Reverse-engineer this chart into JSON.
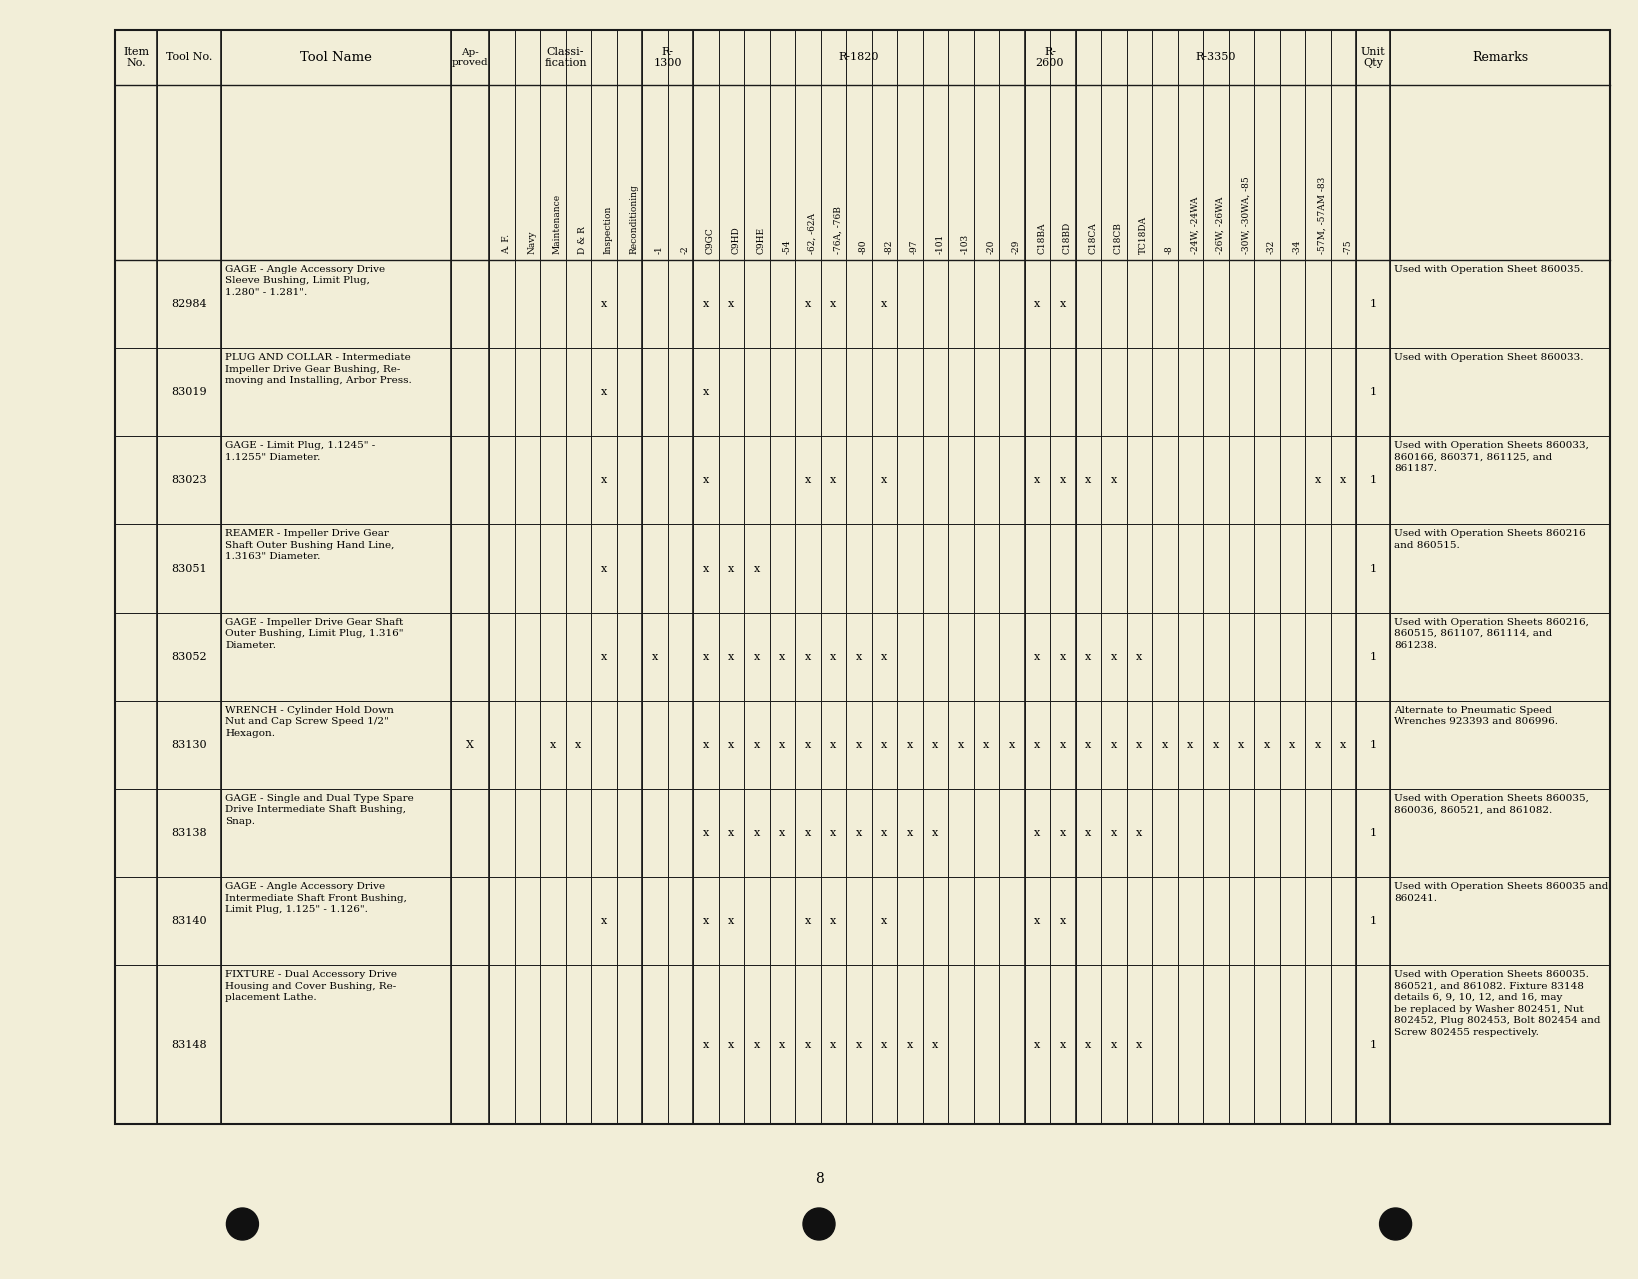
{
  "bg_color": "#f2eed8",
  "page_number": "8",
  "sub_col_labels": [
    "A. F.",
    "Navy",
    "Maintenance",
    "D & R",
    "Inspection",
    "Reconditioning",
    "-1",
    "-2",
    "C9GC",
    "C9HD",
    "C9HE",
    "-54",
    "-62, -62A",
    "-76A, -76B",
    "-80",
    "-82",
    "-97",
    "-101",
    "-103",
    "-20",
    "-29",
    "C18BA",
    "C18BD",
    "C18CA",
    "C18CB",
    "TC18DA",
    "-8",
    "-24W, -24WA",
    "-26W, -26WA",
    "-30W, -30WA, -85",
    "-32",
    "-34",
    "-57M, -57AM -83",
    "-75"
  ],
  "classi_labels": [
    "A. F.",
    "Navy",
    "Maintenance",
    "D & R",
    "Inspection",
    "Reconditioning"
  ],
  "r1300_labels": [
    "-1",
    "-2"
  ],
  "r1820_labels": [
    "C9GC",
    "C9HD",
    "C9HE",
    "-54",
    "-62, -62A",
    "-76A, -76B",
    "-80",
    "-82",
    "-97",
    "-101",
    "-103",
    "-20",
    "-29"
  ],
  "r2600_labels": [
    "C18BA",
    "C18BD"
  ],
  "r3350_labels": [
    "C18CA",
    "C18CB",
    "TC18DA",
    "-8",
    "-24W, -24WA",
    "-26W, -26WA",
    "-30W, -30WA, -85",
    "-32",
    "-34",
    "-57M, -57AM -83",
    "-75"
  ],
  "rows": [
    {
      "tool_no": "82984",
      "tool_name": "GAGE - Angle Accessory Drive\nSleeve Bushing, Limit Plug,\n1.280\" - 1.281\".",
      "approved": "",
      "marks": [
        "Inspection",
        "C9GC",
        "C9HD",
        "-62, -62A",
        "-76A, -76B",
        "-82",
        "C18BA",
        "C18BD"
      ],
      "unit_qty": "1",
      "remarks": "Used with Operation Sheet 860035."
    },
    {
      "tool_no": "83019",
      "tool_name": "PLUG AND COLLAR - Intermediate\nImpeller Drive Gear Bushing, Re-\nmoving and Installing, Arbor Press.",
      "approved": "",
      "marks": [
        "Inspection",
        "C9GC"
      ],
      "unit_qty": "1",
      "remarks": "Used with Operation Sheet 860033."
    },
    {
      "tool_no": "83023",
      "tool_name": "GAGE - Limit Plug, 1.1245\" -\n1.1255\" Diameter.",
      "approved": "",
      "marks": [
        "Inspection",
        "C9GC",
        "-62, -62A",
        "-76A, -76B",
        "-82",
        "C18BA",
        "C18BD",
        "C18CA",
        "C18CB",
        "-57M, -57AM -83",
        "-75"
      ],
      "unit_qty": "1",
      "remarks": "Used with Operation Sheets 860033,\n860166, 860371, 861125, and\n861187."
    },
    {
      "tool_no": "83051",
      "tool_name": "REAMER - Impeller Drive Gear\nShaft Outer Bushing Hand Line,\n1.3163\" Diameter.",
      "approved": "",
      "marks": [
        "Inspection",
        "C9GC",
        "C9HD",
        "C9HE"
      ],
      "unit_qty": "1",
      "remarks": "Used with Operation Sheets 860216\nand 860515."
    },
    {
      "tool_no": "83052",
      "tool_name": "GAGE - Impeller Drive Gear Shaft\nOuter Bushing, Limit Plug, 1.316\"\nDiameter.",
      "approved": "",
      "marks": [
        "Inspection",
        "-1",
        "C9GC",
        "C9HD",
        "C9HE",
        "-54",
        "-62, -62A",
        "-76A, -76B",
        "-80",
        "-82",
        "C18BA",
        "C18BD",
        "C18CA",
        "C18CB",
        "TC18DA"
      ],
      "unit_qty": "1",
      "remarks": "Used with Operation Sheets 860216,\n860515, 861107, 861114, and\n861238."
    },
    {
      "tool_no": "83130",
      "tool_name": "WRENCH - Cylinder Hold Down\nNut and Cap Screw Speed 1/2\"\nHexagon.",
      "approved": "X",
      "marks": [
        "Maintenance",
        "D & R",
        "C9GC",
        "C9HD",
        "C9HE",
        "-54",
        "-62, -62A",
        "-76A, -76B",
        "-80",
        "-82",
        "-97",
        "-101",
        "-103",
        "-20",
        "-29",
        "C18BA",
        "C18BD",
        "C18CA",
        "C18CB",
        "TC18DA",
        "-8",
        "-24W, -24WA",
        "-26W, -26WA",
        "-30W, -30WA, -85",
        "-32",
        "-34",
        "-57M, -57AM -83",
        "-75"
      ],
      "unit_qty": "1",
      "remarks": "Alternate to Pneumatic Speed\nWrenches 923393 and 806996."
    },
    {
      "tool_no": "83138",
      "tool_name": "GAGE - Single and Dual Type Spare\nDrive Intermediate Shaft Bushing,\nSnap.",
      "approved": "",
      "marks": [
        "C9GC",
        "C9HD",
        "C9HE",
        "-54",
        "-62, -62A",
        "-76A, -76B",
        "-80",
        "-82",
        "-97",
        "-101",
        "C18BA",
        "C18BD",
        "C18CA",
        "C18CB",
        "TC18DA"
      ],
      "unit_qty": "1",
      "remarks": "Used with Operation Sheets 860035,\n860036, 860521, and 861082."
    },
    {
      "tool_no": "83140",
      "tool_name": "GAGE - Angle Accessory Drive\nIntermediate Shaft Front Bushing,\nLimit Plug, 1.125\" - 1.126\".",
      "approved": "",
      "marks": [
        "Inspection",
        "C9GC",
        "C9HD",
        "-62, -62A",
        "-76A, -76B",
        "-82",
        "C18BA",
        "C18BD"
      ],
      "unit_qty": "1",
      "remarks": "Used with Operation Sheets 860035 and\n860241."
    },
    {
      "tool_no": "83148",
      "tool_name": "FIXTURE - Dual Accessory Drive\nHousing and Cover Bushing, Re-\nplacement Lathe.",
      "approved": "",
      "marks": [
        "C9GC",
        "C9HD",
        "C9HE",
        "-54",
        "-62, -62A",
        "-76A, -76B",
        "-80",
        "-82",
        "-97",
        "-101",
        "C18BA",
        "C18BD",
        "C18CA",
        "C18CB",
        "TC18DA"
      ],
      "unit_qty": "1",
      "remarks": "Used with Operation Sheets 860035.\n860521, and 861082. Fixture 83148\ndetails 6, 9, 10, 12, and 16, may\nbe replaced by Washer 802451, Nut\n802452, Plug 802453, Bolt 802454 and\nScrew 802455 respectively."
    }
  ]
}
